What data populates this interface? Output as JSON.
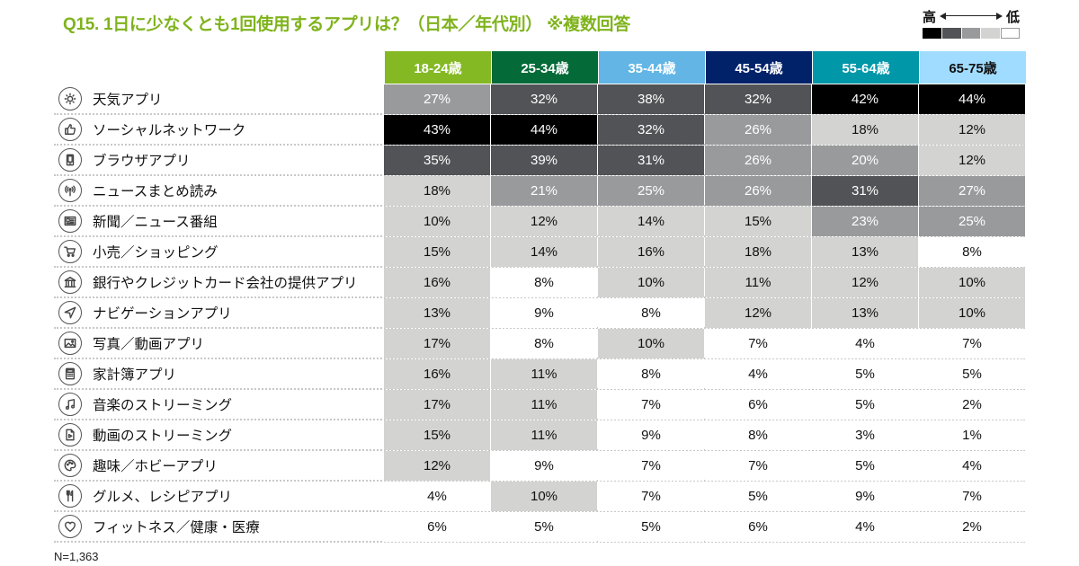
{
  "title": "Q15. 1日に少なくとも1回使用するアプリは？（日本／年代別） ※複数回答",
  "legend": {
    "high_label": "高",
    "low_label": "低",
    "scale_colors": [
      "#000000",
      "#515356",
      "#999a9c",
      "#d3d3d1",
      "#ffffff"
    ]
  },
  "footnote": "N=1,363",
  "chart_data": {
    "type": "heatmap",
    "title": "Q15. 1日に少なくとも1回使用するアプリは？（日本／年代別） ※複数回答",
    "value_unit": "%",
    "columns": [
      {
        "label": "18-24歳",
        "color": "#84b924",
        "text_color": "#ffffff"
      },
      {
        "label": "25-34歳",
        "color": "#046a38",
        "text_color": "#ffffff"
      },
      {
        "label": "35-44歳",
        "color": "#62b5e5",
        "text_color": "#ffffff"
      },
      {
        "label": "45-54歳",
        "color": "#012169",
        "text_color": "#ffffff"
      },
      {
        "label": "55-64歳",
        "color": "#0097a9",
        "text_color": "#ffffff"
      },
      {
        "label": "65-75歳",
        "color": "#a0dcff",
        "text_color": "#111111"
      }
    ],
    "rows": [
      {
        "label": "天気アプリ",
        "icon": "sun-icon",
        "values": [
          27,
          32,
          38,
          32,
          42,
          44
        ],
        "levels": [
          2,
          1,
          1,
          1,
          0,
          0
        ]
      },
      {
        "label": "ソーシャルネットワーク",
        "icon": "thumbs-up-icon",
        "values": [
          43,
          44,
          32,
          26,
          18,
          12
        ],
        "levels": [
          0,
          0,
          1,
          2,
          3,
          3
        ]
      },
      {
        "label": "ブラウザアプリ",
        "icon": "smartphone-icon",
        "values": [
          35,
          39,
          31,
          26,
          20,
          12
        ],
        "levels": [
          1,
          1,
          1,
          2,
          2,
          3
        ]
      },
      {
        "label": "ニュースまとめ読み",
        "icon": "broadcast-icon",
        "values": [
          18,
          21,
          25,
          26,
          31,
          27
        ],
        "levels": [
          3,
          2,
          2,
          2,
          1,
          2
        ]
      },
      {
        "label": "新聞／ニュース番組",
        "icon": "newspaper-icon",
        "values": [
          10,
          12,
          14,
          15,
          23,
          25
        ],
        "levels": [
          3,
          3,
          3,
          3,
          2,
          2
        ]
      },
      {
        "label": "小売／ショッピング",
        "icon": "cart-icon",
        "values": [
          15,
          14,
          16,
          18,
          13,
          8
        ],
        "levels": [
          3,
          3,
          3,
          3,
          3,
          4
        ]
      },
      {
        "label": "銀行やクレジットカード会社の提供アプリ",
        "icon": "bank-icon",
        "values": [
          16,
          8,
          10,
          11,
          12,
          10
        ],
        "levels": [
          3,
          4,
          3,
          3,
          3,
          3
        ]
      },
      {
        "label": "ナビゲーションアプリ",
        "icon": "navigation-icon",
        "values": [
          13,
          9,
          8,
          12,
          13,
          10
        ],
        "levels": [
          3,
          4,
          4,
          3,
          3,
          3
        ]
      },
      {
        "label": "写真／動画アプリ",
        "icon": "photo-icon",
        "values": [
          17,
          8,
          10,
          7,
          4,
          7
        ],
        "levels": [
          3,
          4,
          3,
          4,
          4,
          4
        ]
      },
      {
        "label": "家計簿アプリ",
        "icon": "calculator-icon",
        "values": [
          16,
          11,
          8,
          4,
          5,
          5
        ],
        "levels": [
          3,
          3,
          4,
          4,
          4,
          4
        ]
      },
      {
        "label": "音楽のストリーミング",
        "icon": "music-icon",
        "values": [
          17,
          11,
          7,
          6,
          5,
          2
        ],
        "levels": [
          3,
          3,
          4,
          4,
          4,
          4
        ]
      },
      {
        "label": "動画のストリーミング",
        "icon": "video-file-icon",
        "values": [
          15,
          11,
          9,
          8,
          3,
          1
        ],
        "levels": [
          3,
          3,
          4,
          4,
          4,
          4
        ]
      },
      {
        "label": "趣味／ホビーアプリ",
        "icon": "palette-icon",
        "values": [
          12,
          9,
          7,
          7,
          5,
          4
        ],
        "levels": [
          3,
          4,
          4,
          4,
          4,
          4
        ]
      },
      {
        "label": "グルメ、レシピアプリ",
        "icon": "utensils-icon",
        "values": [
          4,
          10,
          7,
          5,
          9,
          7
        ],
        "levels": [
          4,
          3,
          4,
          4,
          4,
          4
        ]
      },
      {
        "label": "フィットネス／健康・医療",
        "icon": "heart-icon",
        "values": [
          6,
          5,
          5,
          6,
          4,
          2
        ],
        "levels": [
          4,
          4,
          4,
          4,
          4,
          4
        ]
      }
    ]
  }
}
